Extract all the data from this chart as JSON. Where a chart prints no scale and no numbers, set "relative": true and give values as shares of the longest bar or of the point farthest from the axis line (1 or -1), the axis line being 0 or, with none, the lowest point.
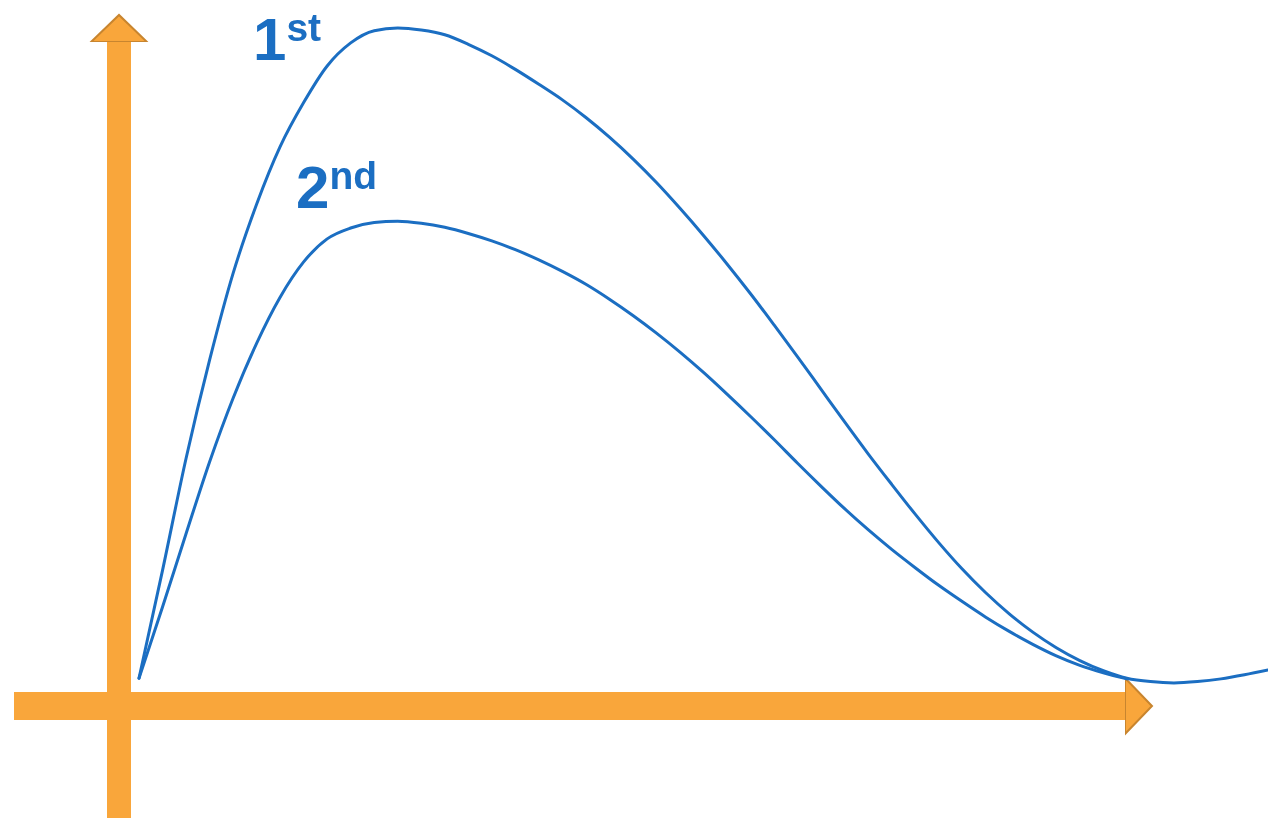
{
  "chart_data": {
    "type": "line",
    "relative": true,
    "categories": [
      null,
      null,
      null,
      null,
      null,
      null,
      null,
      null,
      null,
      null,
      null,
      null,
      null,
      null,
      null,
      null,
      null,
      null,
      null,
      null,
      null,
      null,
      null,
      null,
      null,
      null,
      null,
      null,
      null,
      null,
      null,
      null,
      null,
      null,
      null,
      null,
      null,
      null,
      null,
      null,
      null,
      null,
      null,
      null,
      null,
      null,
      null,
      null,
      null
    ],
    "series": [
      {
        "name": "1$^{st}$",
        "color": "#1b6ec2",
        "values": [
          0.041,
          0.2,
          0.365,
          0.51,
          0.638,
          0.74,
          0.825,
          0.89,
          0.944,
          0.978,
          0.996,
          1,
          0.997,
          0.99,
          0.976,
          0.959,
          0.939,
          0.917,
          0.894,
          0.868,
          0.839,
          0.807,
          0.772,
          0.734,
          0.694,
          0.652,
          0.608,
          0.562,
          0.515,
          0.467,
          0.419,
          0.372,
          0.327,
          0.283,
          0.241,
          0.202,
          0.167,
          0.136,
          0.109,
          0.086,
          0.067,
          0.052,
          0.041,
          0.036,
          0.034,
          0.036,
          0.04,
          0.046,
          0.053
        ]
      },
      {
        "name": "2$^{nd}$",
        "color": "#1b6ec2",
        "values": [
          0.041,
          0.146,
          0.254,
          0.36,
          0.454,
          0.535,
          0.603,
          0.655,
          0.689,
          0.705,
          0.713,
          0.715,
          0.712,
          0.706,
          0.697,
          0.686,
          0.673,
          0.658,
          0.641,
          0.622,
          0.6,
          0.576,
          0.55,
          0.522,
          0.492,
          0.46,
          0.427,
          0.393,
          0.358,
          0.324,
          0.291,
          0.26,
          0.231,
          0.204,
          0.178,
          0.154,
          0.131,
          0.11,
          0.091,
          0.074,
          0.06,
          0.049,
          0.04,
          null,
          null,
          null,
          null,
          null,
          null
        ]
      }
    ]
  }
}
